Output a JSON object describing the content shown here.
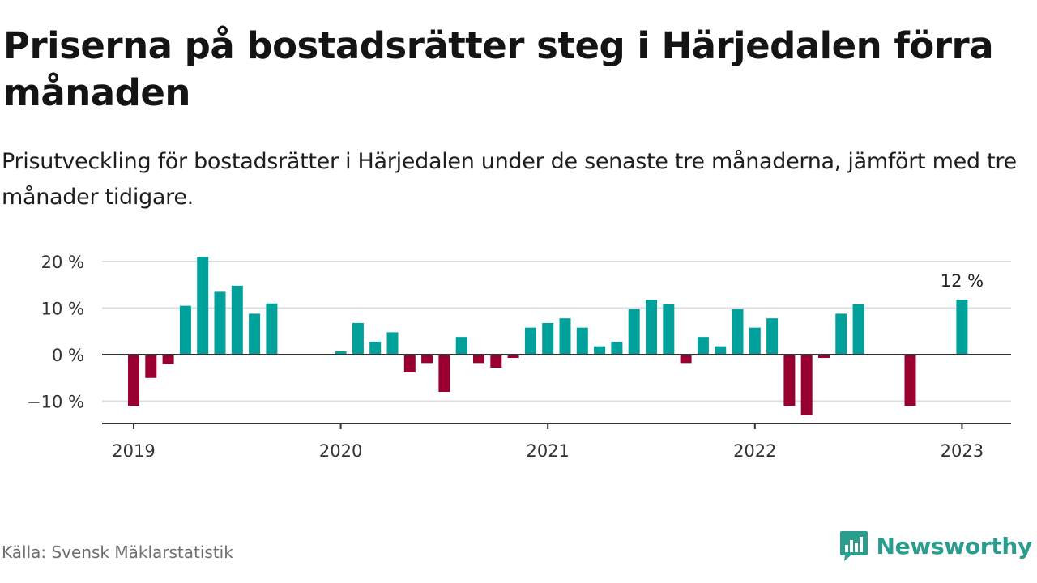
{
  "header": {
    "title": "Priserna på bostadsrätter steg i Härjedalen förra månaden",
    "subtitle": "Prisutveckling för bostadsrätter i Härjedalen under de senaste tre månaderna, jämfört med tre månader tidigare."
  },
  "footer": {
    "source": "Källa: Svensk Mäklarstatistik",
    "brand": "Newsworthy"
  },
  "colors": {
    "positive": "#00a19a",
    "negative": "#99002f",
    "brand": "#2a9d8f",
    "grid": "#dddddd",
    "axis": "#333333"
  },
  "chart_data": {
    "type": "bar",
    "title": "",
    "xlabel": "",
    "ylabel": "",
    "ylim": [
      -15,
      22
    ],
    "yticks": [
      -10,
      0,
      10,
      20
    ],
    "ytick_labels": [
      "−10 %",
      "0 %",
      "10 %",
      "20 %"
    ],
    "xticks": [
      "2019",
      "2020",
      "2021",
      "2022",
      "2023"
    ],
    "grid": true,
    "x": [
      "2019-01",
      "2019-02",
      "2019-03",
      "2019-04",
      "2019-05",
      "2019-06",
      "2019-07",
      "2019-08",
      "2019-09",
      "2019-10",
      "2019-11",
      "2019-12",
      "2020-01",
      "2020-02",
      "2020-03",
      "2020-04",
      "2020-05",
      "2020-06",
      "2020-07",
      "2020-08",
      "2020-09",
      "2020-10",
      "2020-11",
      "2020-12",
      "2021-01",
      "2021-02",
      "2021-03",
      "2021-04",
      "2021-05",
      "2021-06",
      "2021-07",
      "2021-08",
      "2021-09",
      "2021-10",
      "2021-11",
      "2021-12",
      "2022-01",
      "2022-02",
      "2022-03",
      "2022-04",
      "2022-05",
      "2022-06",
      "2022-07",
      "2022-08",
      "2022-09",
      "2022-10",
      "2022-11",
      "2022-12",
      "2023-01"
    ],
    "values": [
      -11,
      -5,
      -2,
      10.5,
      21,
      13.5,
      14.8,
      8.8,
      11,
      null,
      null,
      null,
      0.7,
      6.8,
      2.8,
      4.8,
      -3.8,
      -1.8,
      -8,
      3.8,
      -1.8,
      -2.8,
      -0.7,
      5.8,
      6.8,
      7.8,
      5.8,
      1.8,
      2.8,
      9.8,
      11.8,
      10.8,
      -1.8,
      3.8,
      1.8,
      9.8,
      5.8,
      7.8,
      -11,
      -13,
      -0.7,
      8.8,
      10.8,
      null,
      null,
      -11,
      null,
      null,
      11.8
    ],
    "annotations": [
      {
        "x": "2023-01",
        "text": "12 %"
      }
    ]
  }
}
